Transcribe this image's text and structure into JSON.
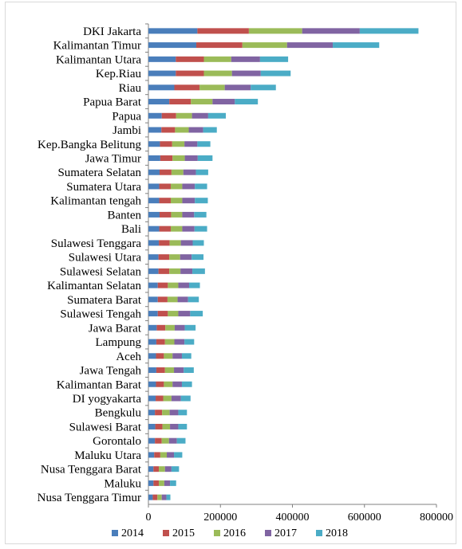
{
  "chart_data": {
    "type": "bar",
    "orientation": "horizontal",
    "stacked": true,
    "categories": [
      "DKI Jakarta",
      "Kalimantan Timur",
      "Kalimantan Utara",
      "Kep.Riau",
      "Riau",
      "Papua Barat",
      "Papua",
      "Jambi",
      "Kep.Bangka Belitung",
      "Jawa Timur",
      "Sumatera Selatan",
      "Sumatera Utara",
      "Kalimantan tengah",
      "Banten",
      "Bali",
      "Sulawesi Tenggara",
      "Sulawesi Utara",
      "Sulawesi Selatan",
      "Kalimantan Selatan",
      "Sumatera Barat",
      "Sulawesi Tengah",
      "Jawa Barat",
      "Lampung",
      "Aceh",
      "Jawa Tengah",
      "Kalimantan Barat",
      "DI yogyakarta",
      "Bengkulu",
      "Sulawesi Barat",
      "Gorontalo",
      "Maluku Utara",
      "Nusa Tenggara Barat",
      "Maluku",
      "Nusa Tenggara Timur"
    ],
    "series": [
      {
        "name": "2014",
        "color": "#4a7ebb",
        "values": [
          136000,
          133000,
          76000,
          76000,
          72000,
          58000,
          37000,
          36000,
          32000,
          33000,
          31000,
          30000,
          30000,
          31000,
          30000,
          29000,
          28000,
          28000,
          26000,
          26000,
          26000,
          23000,
          22000,
          21000,
          22000,
          21000,
          20000,
          18000,
          19000,
          18000,
          16000,
          14000,
          14000,
          12000
        ]
      },
      {
        "name": "2015",
        "color": "#c0504d",
        "values": [
          143000,
          128000,
          78000,
          78000,
          70000,
          60000,
          40000,
          38000,
          34000,
          34000,
          33000,
          32000,
          32000,
          32000,
          32000,
          30000,
          30000,
          30000,
          28000,
          27000,
          28000,
          24000,
          24000,
          22000,
          24000,
          22000,
          21000,
          20000,
          20000,
          19000,
          17000,
          15000,
          15000,
          13000
        ]
      },
      {
        "name": "2016",
        "color": "#9bbb59",
        "values": [
          148000,
          124000,
          76000,
          78000,
          70000,
          60000,
          44000,
          38000,
          34000,
          34000,
          33000,
          32000,
          32000,
          31000,
          32000,
          31000,
          30000,
          31000,
          29000,
          28000,
          29000,
          26000,
          26000,
          24000,
          25000,
          24000,
          23000,
          21000,
          21000,
          20000,
          18000,
          17000,
          15000,
          12000
        ]
      },
      {
        "name": "2017",
        "color": "#8064a2",
        "values": [
          160000,
          127000,
          80000,
          80000,
          72000,
          62000,
          45000,
          40000,
          36000,
          36000,
          35000,
          35000,
          35000,
          33000,
          34000,
          33000,
          32000,
          33000,
          30000,
          29000,
          33000,
          28000,
          28000,
          26000,
          27000,
          26000,
          26000,
          24000,
          23000,
          22000,
          20000,
          18000,
          16000,
          13000
        ]
      },
      {
        "name": "2018",
        "color": "#4bacc6",
        "values": [
          163000,
          129000,
          78000,
          83000,
          70000,
          64000,
          49000,
          38000,
          36000,
          41000,
          34000,
          34000,
          36000,
          34000,
          35000,
          31000,
          33000,
          35000,
          30000,
          30000,
          35000,
          30000,
          27000,
          26000,
          28000,
          28000,
          27000,
          24000,
          24000,
          24000,
          23000,
          21000,
          17000,
          11000
        ]
      }
    ],
    "xlim": [
      0,
      800000
    ],
    "xticks": [
      0,
      200000,
      400000,
      600000,
      800000
    ],
    "xtick_labels": [
      "0",
      "200000",
      "400000",
      "600000",
      "800000"
    ],
    "title": "",
    "xlabel": "",
    "ylabel": "",
    "grid": false,
    "legend_position": "bottom"
  }
}
